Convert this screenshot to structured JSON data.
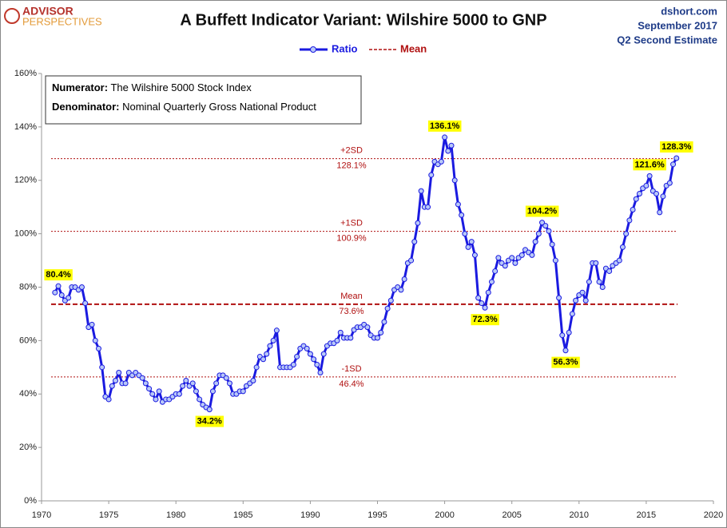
{
  "chart_data": {
    "type": "line",
    "logo": [
      "ADVISOR",
      "PERSPECTIVES"
    ],
    "title": "A Buffett Indicator Variant: Wilshire 5000 to GNP",
    "source_lines": [
      "dshort.com",
      "September 2017",
      "Q2 Second Estimate"
    ],
    "notes": [
      {
        "label": "Numerator:",
        "text": " The Wilshire 5000 Stock Index"
      },
      {
        "label": "Denominator:",
        "text": " Nominal Quarterly Gross National Product"
      }
    ],
    "xlim": [
      1970,
      2020
    ],
    "xticks": [
      1970,
      1975,
      1980,
      1985,
      1990,
      1995,
      2000,
      2005,
      2010,
      2015,
      2020
    ],
    "ylim": [
      0,
      160
    ],
    "yticks": [
      {
        "value": 0,
        "label": "0%"
      },
      {
        "value": 20,
        "label": "20%"
      },
      {
        "value": 40,
        "label": "40%"
      },
      {
        "value": 60,
        "label": "60%"
      },
      {
        "value": 80,
        "label": "80%"
      },
      {
        "value": 100,
        "label": "100%"
      },
      {
        "value": 120,
        "label": "120%"
      },
      {
        "value": 140,
        "label": "140%"
      },
      {
        "value": 160,
        "label": "160%"
      }
    ],
    "grid": false,
    "x": [
      1971,
      1971.25,
      1971.5,
      1971.75,
      1972,
      1972.25,
      1972.5,
      1972.75,
      1973,
      1973.25,
      1973.5,
      1973.75,
      1974,
      1974.25,
      1974.5,
      1974.75,
      1975,
      1975.25,
      1975.5,
      1975.75,
      1976,
      1976.25,
      1976.5,
      1976.75,
      1977,
      1977.25,
      1977.5,
      1977.75,
      1978,
      1978.25,
      1978.5,
      1978.75,
      1979,
      1979.25,
      1979.5,
      1979.75,
      1980,
      1980.25,
      1980.5,
      1980.75,
      1981,
      1981.25,
      1981.5,
      1981.75,
      1982,
      1982.25,
      1982.5,
      1982.75,
      1983,
      1983.25,
      1983.5,
      1983.75,
      1984,
      1984.25,
      1984.5,
      1984.75,
      1985,
      1985.25,
      1985.5,
      1985.75,
      1986,
      1986.25,
      1986.5,
      1986.75,
      1987,
      1987.25,
      1987.5,
      1987.75,
      1988,
      1988.25,
      1988.5,
      1988.75,
      1989,
      1989.25,
      1989.5,
      1989.75,
      1990,
      1990.25,
      1990.5,
      1990.75,
      1991,
      1991.25,
      1991.5,
      1991.75,
      1992,
      1992.25,
      1992.5,
      1992.75,
      1993,
      1993.25,
      1993.5,
      1993.75,
      1994,
      1994.25,
      1994.5,
      1994.75,
      1995,
      1995.25,
      1995.5,
      1995.75,
      1996,
      1996.25,
      1996.5,
      1996.75,
      1997,
      1997.25,
      1997.5,
      1997.75,
      1998,
      1998.25,
      1998.5,
      1998.75,
      1999,
      1999.25,
      1999.5,
      1999.75,
      2000,
      2000.25,
      2000.5,
      2000.75,
      2001,
      2001.25,
      2001.5,
      2001.75,
      2002,
      2002.25,
      2002.5,
      2002.75,
      2003,
      2003.25,
      2003.5,
      2003.75,
      2004,
      2004.25,
      2004.5,
      2004.75,
      2005,
      2005.25,
      2005.5,
      2005.75,
      2006,
      2006.25,
      2006.5,
      2006.75,
      2007,
      2007.25,
      2007.5,
      2007.75,
      2008,
      2008.25,
      2008.5,
      2008.75,
      2009,
      2009.25,
      2009.5,
      2009.75,
      2010,
      2010.25,
      2010.5,
      2010.75,
      2011,
      2011.25,
      2011.5,
      2011.75,
      2012,
      2012.25,
      2012.5,
      2012.75,
      2013,
      2013.25,
      2013.5,
      2013.75,
      2014,
      2014.25,
      2014.5,
      2014.75,
      2015,
      2015.25,
      2015.5,
      2015.75,
      2016,
      2016.25,
      2016.5,
      2016.75,
      2017,
      2017.25
    ],
    "series": [
      {
        "name": "Ratio",
        "color": "#1a1ae0",
        "marker_fill": "#b8c8f8",
        "values": [
          78,
          80.4,
          77,
          75,
          76,
          80,
          80,
          79,
          80,
          74,
          65,
          66,
          60,
          57,
          50,
          39,
          38,
          43,
          45,
          48,
          44,
          44,
          48,
          47,
          48,
          47,
          46,
          44,
          42,
          40,
          38,
          41,
          37,
          38,
          38,
          39,
          40,
          40,
          43,
          45,
          43,
          44,
          41,
          38,
          36,
          35,
          34.2,
          41,
          44,
          47,
          47,
          46,
          44,
          40,
          40,
          41,
          41,
          43,
          44,
          45,
          50,
          54,
          53,
          55,
          58,
          60,
          63.8,
          50,
          50,
          50,
          50,
          51,
          54,
          57,
          58,
          57,
          55,
          53,
          51,
          48,
          55,
          58,
          59,
          59,
          60,
          63,
          61,
          61,
          61,
          64,
          65,
          65,
          66,
          65,
          62,
          61,
          61,
          63,
          67,
          72,
          75,
          79,
          80,
          79,
          83,
          89,
          90,
          97,
          104,
          116,
          110,
          110,
          122,
          127,
          126,
          127,
          136.1,
          131,
          133,
          120,
          111,
          107,
          100,
          95,
          97,
          92,
          76,
          74,
          72.3,
          78,
          82,
          86,
          91,
          89,
          88,
          90,
          91,
          89,
          91,
          92,
          94,
          93,
          92,
          97,
          100,
          104.2,
          103,
          101,
          96,
          90,
          76,
          62,
          56.3,
          63,
          70,
          75,
          77,
          78,
          75,
          82,
          89,
          89,
          82,
          80,
          87,
          86,
          88,
          89,
          90,
          95,
          100,
          105,
          109,
          113,
          115,
          117,
          118,
          121.6,
          116,
          115,
          108,
          114,
          118,
          119,
          126,
          128.3
        ],
        "value_labels": [
          null,
          "80.4%",
          null,
          null,
          null,
          null,
          null,
          null,
          null,
          null,
          null,
          null,
          null,
          null,
          null,
          null,
          null,
          null,
          null,
          null,
          null,
          null,
          null,
          null,
          null,
          null,
          null,
          null,
          null,
          null,
          null,
          null,
          null,
          null,
          null,
          null,
          null,
          null,
          null,
          null,
          null,
          null,
          null,
          null,
          null,
          null,
          "34.2%",
          null,
          null,
          null,
          null,
          null,
          null,
          null,
          null,
          null,
          null,
          null,
          null,
          null,
          null,
          null,
          null,
          null,
          null,
          null,
          null,
          null,
          null,
          null,
          null,
          null,
          null,
          null,
          null,
          null,
          null,
          null,
          null,
          null,
          null,
          null,
          null,
          null,
          null,
          null,
          null,
          null,
          null,
          null,
          null,
          null,
          null,
          null,
          null,
          null,
          null,
          null,
          null,
          null,
          null,
          null,
          null,
          null,
          null,
          null,
          null,
          null,
          null,
          null,
          null,
          null,
          null,
          null,
          null,
          null,
          "136.1%",
          null,
          null,
          null,
          null,
          null,
          null,
          null,
          null,
          null,
          null,
          null,
          "72.3%",
          null,
          null,
          null,
          null,
          null,
          null,
          null,
          null,
          null,
          null,
          null,
          null,
          null,
          null,
          null,
          null,
          "104.2%",
          null,
          null,
          null,
          null,
          null,
          null,
          "56.3%",
          null,
          null,
          null,
          null,
          null,
          null,
          null,
          null,
          null,
          null,
          null,
          null,
          null,
          null,
          null,
          null,
          null,
          null,
          null,
          null,
          null,
          null,
          null,
          null,
          "121.6%",
          null,
          null,
          null,
          null,
          null,
          null,
          null,
          "128.3%"
        ]
      }
    ],
    "reference_lines": [
      {
        "name": "+2SD",
        "value": 128.1,
        "label": "128.1%",
        "style": "dotted"
      },
      {
        "name": "+1SD",
        "value": 100.9,
        "label": "100.9%",
        "style": "dotted"
      },
      {
        "name": "Mean",
        "value": 73.6,
        "label": "73.6%",
        "style": "dashed"
      },
      {
        "name": "-1SD",
        "value": 46.4,
        "label": "46.4%",
        "style": "dotted"
      }
    ],
    "reference_color": "#b01010",
    "legend_mean": "Mean"
  }
}
